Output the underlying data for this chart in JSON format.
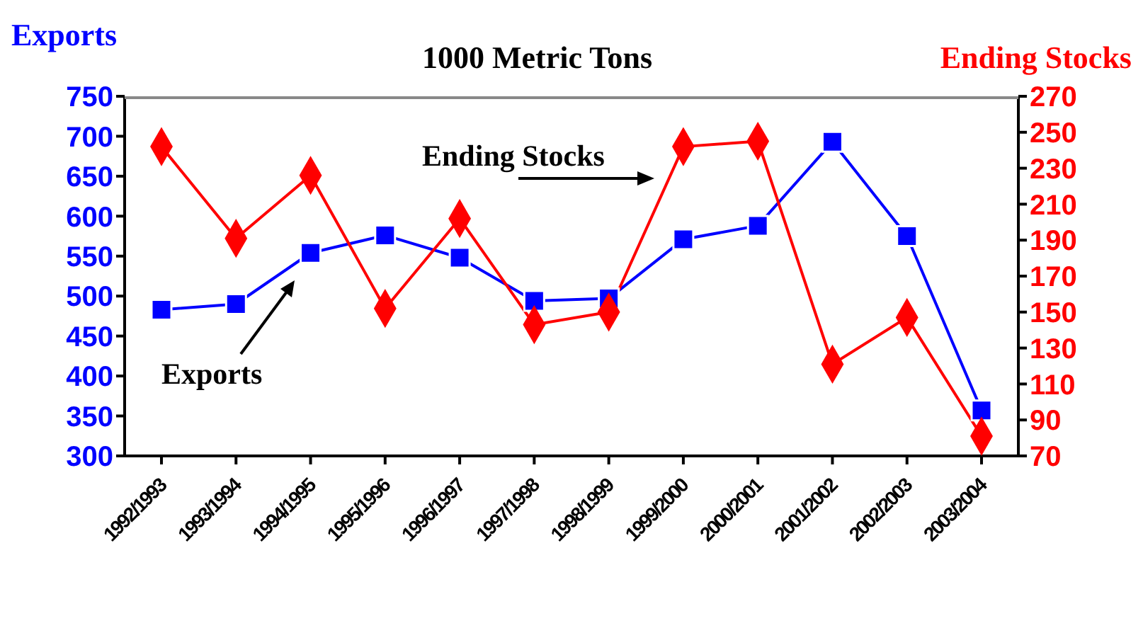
{
  "chart_data": {
    "type": "line",
    "title": "1000 Metric Tons",
    "ylabel": "Exports",
    "y2label": "Ending Stocks",
    "annotations": [
      "Ending Stocks",
      "Exports"
    ],
    "categories": [
      "1992/1993",
      "1993/1994",
      "1994/1995",
      "1995/1996",
      "1996/1997",
      "1997/1998",
      "1998/1999",
      "1999/2000",
      "2000/2001",
      "2001/2002",
      "2002/2003",
      "2003/2004"
    ],
    "series": [
      {
        "color": "#0000ff",
        "marker": "square",
        "values": [
          483,
          490,
          554,
          576,
          548,
          494,
          497,
          571,
          588,
          693,
          575,
          357
        ]
      },
      {
        "color": "#ff0000",
        "marker": "diamond",
        "axis": "y2",
        "values": [
          242,
          191,
          226,
          152,
          202,
          143,
          150,
          242,
          245,
          121,
          147,
          81
        ]
      }
    ],
    "ylim": [
      300,
      750
    ],
    "yticks": [
      300,
      350,
      400,
      450,
      500,
      550,
      600,
      650,
      700,
      750
    ],
    "y2lim": [
      70,
      270
    ],
    "y2ticks": [
      70,
      90,
      110,
      130,
      150,
      170,
      190,
      210,
      230,
      250,
      270
    ],
    "grid": false,
    "legend": false
  }
}
